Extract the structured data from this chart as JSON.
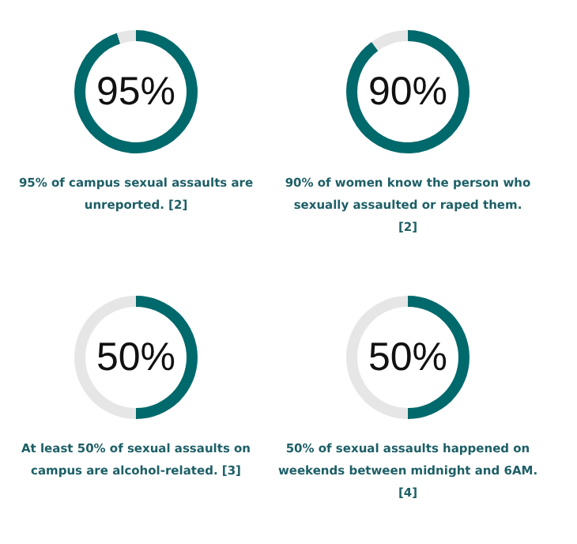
{
  "chart_data": [
    {
      "type": "donut",
      "categories": [
        null,
        null
      ],
      "values": [
        95,
        5
      ],
      "colors": [
        "#00696b",
        "#e6e6e6"
      ],
      "annotations": [
        "95%",
        "95% of campus sexual assaults are unreported. [2]"
      ]
    },
    {
      "type": "donut",
      "categories": [
        null,
        null
      ],
      "values": [
        90,
        10
      ],
      "colors": [
        "#00696b",
        "#e6e6e6"
      ],
      "annotations": [
        "90%",
        "90% of women know the person who sexually assaulted or raped them. [2]"
      ]
    },
    {
      "type": "donut",
      "categories": [
        null,
        null
      ],
      "values": [
        50,
        50
      ],
      "colors": [
        "#00696b",
        "#e6e6e6"
      ],
      "annotations": [
        "50%",
        "At least 50% of sexual assaults on campus are alcohol-related. [3]"
      ]
    },
    {
      "type": "donut",
      "categories": [
        null,
        null
      ],
      "values": [
        50,
        50
      ],
      "colors": [
        "#00696b",
        "#e6e6e6"
      ],
      "annotations": [
        "50%",
        "50% of sexual assaults happened on weekends between midnight and 6AM. [4]"
      ]
    }
  ]
}
